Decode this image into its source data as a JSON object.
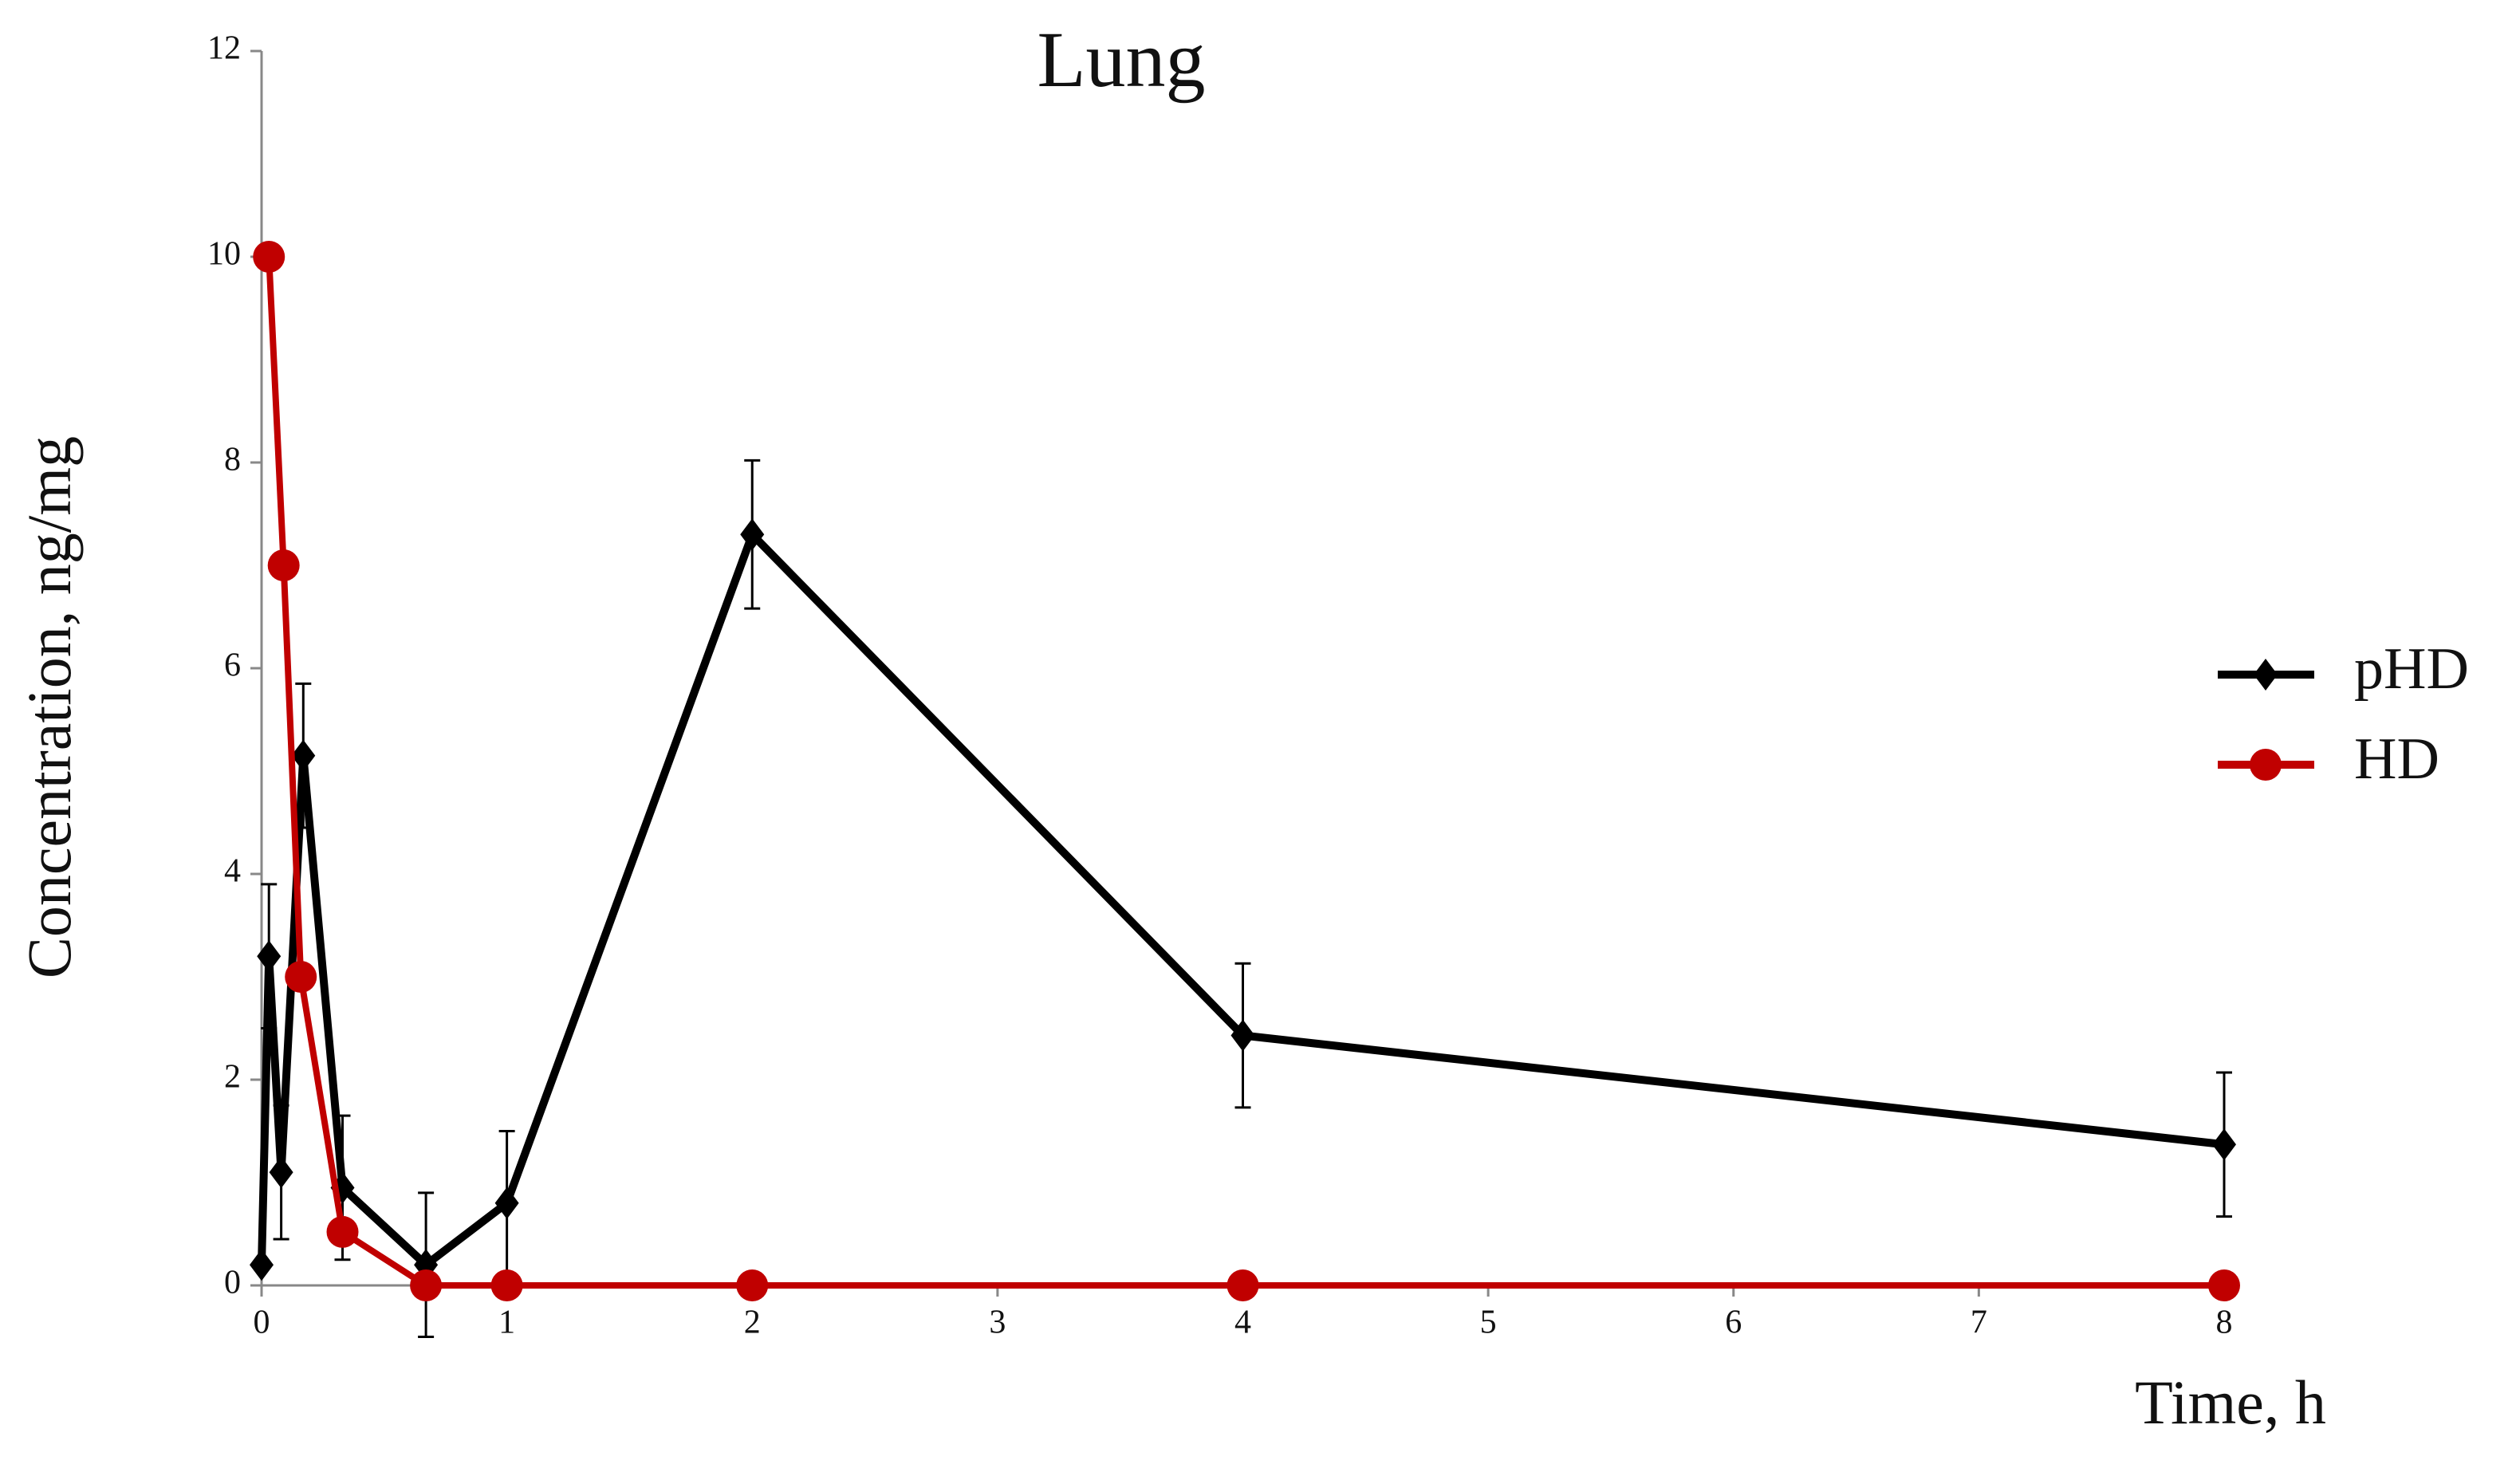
{
  "chart_data": {
    "type": "line",
    "title": "Lung",
    "xlabel": "Time, h",
    "ylabel": "Concentration, ng/mg",
    "xlim": [
      0,
      8
    ],
    "xticks": [
      0,
      1,
      2,
      3,
      4,
      5,
      6,
      7,
      8
    ],
    "ylim": [
      0,
      12
    ],
    "yticks": [
      0,
      2,
      4,
      6,
      8,
      10,
      12
    ],
    "legend": "right",
    "series": [
      {
        "name": "pHD",
        "color": "#000000",
        "marker": "diamond",
        "x": [
          0,
          0.03,
          0.08,
          0.17,
          0.33,
          0.67,
          1,
          2,
          4,
          8
        ],
        "values": [
          0.2,
          3.2,
          1.1,
          5.15,
          0.95,
          0.2,
          0.8,
          7.3,
          2.43,
          1.37
        ],
        "errors": [
          null,
          0.7,
          0.65,
          0.7,
          0.7,
          0.7,
          0.7,
          0.72,
          0.7,
          0.7
        ]
      },
      {
        "name": "HD",
        "color": "#c00000",
        "marker": "circle",
        "x": [
          0.03,
          0.09,
          0.16,
          0.33,
          0.67,
          1,
          2,
          4,
          8
        ],
        "values": [
          10,
          7,
          3,
          0.52,
          0,
          0,
          0,
          0,
          0
        ]
      }
    ]
  }
}
